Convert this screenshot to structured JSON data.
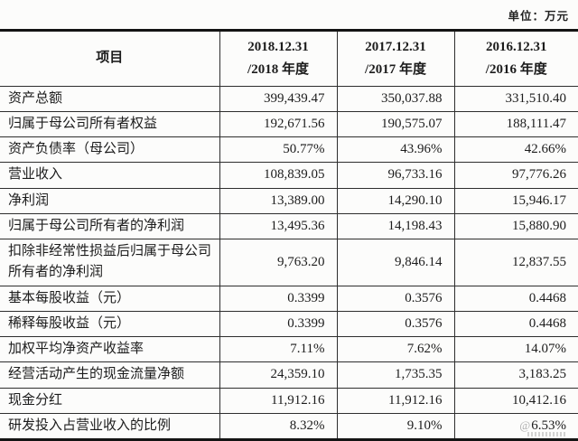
{
  "unit_label": "单位：万元",
  "table": {
    "header": {
      "item": "项目",
      "periods": [
        {
          "line1": "2018.12.31",
          "line2": "/2018 年度"
        },
        {
          "line1": "2017.12.31",
          "line2": "/2017 年度"
        },
        {
          "line1": "2016.12.31",
          "line2": "/2016 年度"
        }
      ]
    },
    "rows": [
      {
        "label": "资产总额",
        "values": [
          "399,439.47",
          "350,037.88",
          "331,510.40"
        ]
      },
      {
        "label": "归属于母公司所有者权益",
        "values": [
          "192,671.56",
          "190,575.07",
          "188,111.47"
        ]
      },
      {
        "label": "资产负债率（母公司）",
        "values": [
          "50.77%",
          "43.96%",
          "42.66%"
        ]
      },
      {
        "label": "营业收入",
        "values": [
          "108,839.05",
          "96,733.16",
          "97,776.26"
        ]
      },
      {
        "label": "净利润",
        "values": [
          "13,389.00",
          "14,290.10",
          "15,946.17"
        ]
      },
      {
        "label": "归属于母公司所有者的净利润",
        "values": [
          "13,495.36",
          "14,198.43",
          "15,880.90"
        ]
      },
      {
        "label": "扣除非经常性损益后归属于母公司所有者的净利润",
        "values": [
          "9,763.20",
          "9,846.14",
          "12,837.55"
        ]
      },
      {
        "label": "基本每股收益（元）",
        "values": [
          "0.3399",
          "0.3576",
          "0.4468"
        ]
      },
      {
        "label": "稀释每股收益（元）",
        "values": [
          "0.3399",
          "0.3576",
          "0.4468"
        ]
      },
      {
        "label": "加权平均净资产收益率",
        "values": [
          "7.11%",
          "7.62%",
          "14.07%"
        ]
      },
      {
        "label": "经营活动产生的现金流量净额",
        "values": [
          "24,359.10",
          "1,735.35",
          "3,183.25"
        ]
      },
      {
        "label": "现金分红",
        "values": [
          "11,912.16",
          "11,912.16",
          "10,412.16"
        ]
      },
      {
        "label": "研发投入占营业收入的比例",
        "values": [
          "8.32%",
          "9.10%",
          "6.53%"
        ]
      }
    ],
    "watermark": "@"
  }
}
